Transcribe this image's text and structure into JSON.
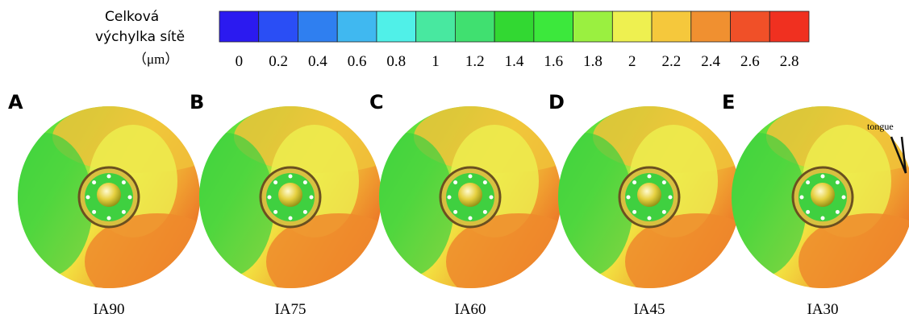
{
  "legend": {
    "title_lines": [
      "Celková",
      "výchylka sítě",
      "（μm）"
    ],
    "colors": [
      "#2b1af0",
      "#2a4ef5",
      "#2f7ff0",
      "#40b8f0",
      "#50f0e8",
      "#48e8a0",
      "#40e070",
      "#32d832",
      "#3ce83c",
      "#9af040",
      "#eef050",
      "#f5c83c",
      "#f09030",
      "#f05028",
      "#f03020"
    ],
    "ticks": [
      "0",
      "0.2",
      "0.4",
      "0.6",
      "0.8",
      "1",
      "1.2",
      "1.4",
      "1.6",
      "1.8",
      "2",
      "2.2",
      "2.4",
      "2.6",
      "2.8"
    ]
  },
  "panels": [
    {
      "letter": "A",
      "caption": "IA90"
    },
    {
      "letter": "B",
      "caption": "IA75"
    },
    {
      "letter": "C",
      "caption": "IA60"
    },
    {
      "letter": "D",
      "caption": "IA45"
    },
    {
      "letter": "E",
      "caption": "IA30",
      "annotation": "tongue"
    }
  ]
}
